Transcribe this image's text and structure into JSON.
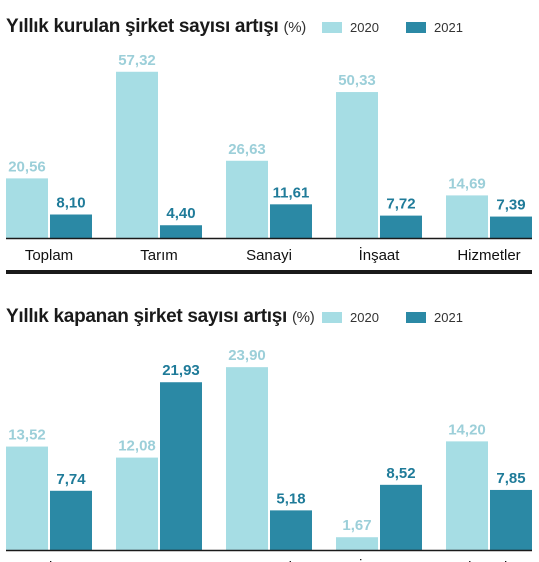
{
  "colors": {
    "s2020": "#a6dde4",
    "s2021": "#2b89a5",
    "label2020": "#9ccfd9",
    "label2021": "#1f7b99",
    "axis": "#1a1a1a"
  },
  "chart_data": [
    {
      "type": "bar",
      "title": "Yıllık kurulan şirket sayısı artışı",
      "unit": "(%)",
      "categories": [
        "Toplam",
        "Tarım",
        "Sanayi",
        "İnşaat",
        "Hizmetler"
      ],
      "series": [
        {
          "name": "2020",
          "values": [
            20.56,
            57.32,
            26.63,
            50.33,
            14.69
          ],
          "labels": [
            "20,56",
            "57,32",
            "26,63",
            "50,33",
            "14,69"
          ]
        },
        {
          "name": "2021",
          "values": [
            8.1,
            4.4,
            11.61,
            7.72,
            7.39
          ],
          "labels": [
            "8,10",
            "4,40",
            "11,61",
            "7,72",
            "7,39"
          ]
        }
      ],
      "legend": "top-right",
      "grid": false
    },
    {
      "type": "bar",
      "title": "Yıllık kapanan şirket sayısı artışı",
      "unit": "(%)",
      "categories": [
        "Toplam",
        "Tarım",
        "Sanayi",
        "İnşaat",
        "Hizmetler"
      ],
      "series": [
        {
          "name": "2020",
          "values": [
            13.52,
            12.08,
            23.9,
            1.67,
            14.2
          ],
          "labels": [
            "13,52",
            "12,08",
            "23,90",
            "1,67",
            "14,20"
          ]
        },
        {
          "name": "2021",
          "values": [
            7.74,
            21.93,
            5.18,
            8.52,
            7.85
          ],
          "labels": [
            "7,74",
            "21,93",
            "5,18",
            "8,52",
            "7,85"
          ]
        }
      ],
      "legend": "top-right",
      "grid": false
    }
  ]
}
